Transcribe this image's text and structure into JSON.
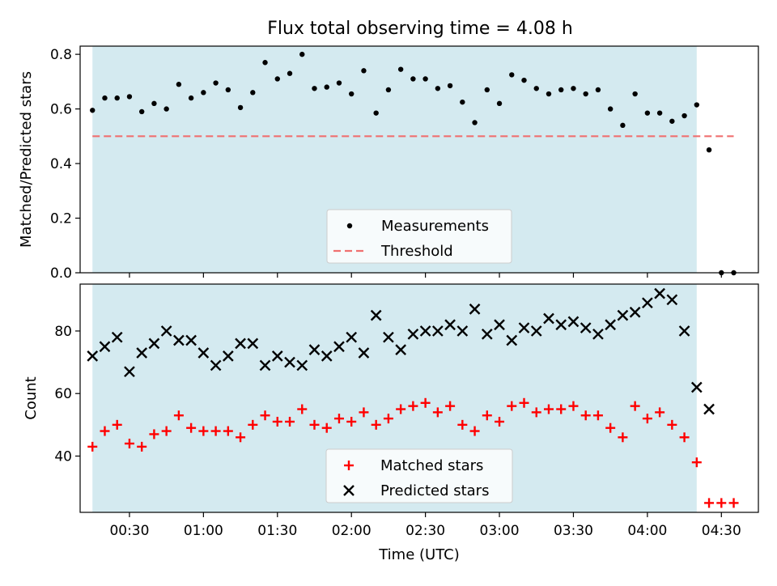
{
  "chart_data": [
    {
      "type": "scatter",
      "title": "Flux total observing time = 4.08 h",
      "ylabel": "Matched/Predicted stars",
      "xlim": [
        "00:10",
        "04:45"
      ],
      "ylim": [
        0,
        0.83
      ],
      "yticks": [
        "0.0",
        "0.2",
        "0.4",
        "0.6",
        "0.8"
      ],
      "shaded_span": [
        "00:15",
        "04:20"
      ],
      "shade_color": "#d4eaf0",
      "threshold": {
        "value": 0.5,
        "from": "00:15",
        "to": "04:35",
        "color": "#f07070"
      },
      "legend": {
        "placement": "bottom-center",
        "entries": [
          "Measurements",
          "Threshold"
        ]
      },
      "series": [
        {
          "name": "Measurements",
          "color": "#000000",
          "marker": "dot",
          "x": [
            "00:15",
            "00:20",
            "00:25",
            "00:30",
            "00:35",
            "00:40",
            "00:45",
            "00:50",
            "00:55",
            "01:00",
            "01:05",
            "01:10",
            "01:15",
            "01:20",
            "01:25",
            "01:30",
            "01:35",
            "01:40",
            "01:45",
            "01:50",
            "01:55",
            "02:00",
            "02:05",
            "02:10",
            "02:15",
            "02:20",
            "02:25",
            "02:30",
            "02:35",
            "02:40",
            "02:45",
            "02:50",
            "02:55",
            "03:00",
            "03:05",
            "03:10",
            "03:15",
            "03:20",
            "03:25",
            "03:30",
            "03:35",
            "03:40",
            "03:45",
            "03:50",
            "03:55",
            "04:00",
            "04:05",
            "04:10",
            "04:15",
            "04:20",
            "04:25",
            "04:30",
            "04:35"
          ],
          "y": [
            0.595,
            0.64,
            0.64,
            0.645,
            0.59,
            0.62,
            0.6,
            0.69,
            0.64,
            0.66,
            0.695,
            0.67,
            0.605,
            0.66,
            0.77,
            0.71,
            0.73,
            0.8,
            0.675,
            0.68,
            0.695,
            0.655,
            0.74,
            0.585,
            0.67,
            0.745,
            0.71,
            0.71,
            0.675,
            0.685,
            0.625,
            0.55,
            0.67,
            0.62,
            0.725,
            0.705,
            0.675,
            0.655,
            0.67,
            0.675,
            0.655,
            0.67,
            0.6,
            0.54,
            0.655,
            0.585,
            0.585,
            0.555,
            0.575,
            0.615,
            0.45,
            0.0,
            0.0
          ]
        }
      ]
    },
    {
      "type": "scatter",
      "ylabel": "Count",
      "xlabel": "Time (UTC)",
      "xlim": [
        "00:10",
        "04:45"
      ],
      "ylim": [
        22,
        95
      ],
      "yticks": [
        "40",
        "60",
        "80"
      ],
      "xticks": [
        "00:30",
        "01:00",
        "01:30",
        "02:00",
        "02:30",
        "03:00",
        "03:30",
        "04:00",
        "04:30"
      ],
      "shaded_span": [
        "00:15",
        "04:20"
      ],
      "shade_color": "#d4eaf0",
      "legend": {
        "placement": "bottom-center",
        "entries": [
          "Matched stars",
          "Predicted stars"
        ]
      },
      "series": [
        {
          "name": "Matched stars",
          "color": "#ff0000",
          "marker": "plus",
          "x": [
            "00:15",
            "00:20",
            "00:25",
            "00:30",
            "00:35",
            "00:40",
            "00:45",
            "00:50",
            "00:55",
            "01:00",
            "01:05",
            "01:10",
            "01:15",
            "01:20",
            "01:25",
            "01:30",
            "01:35",
            "01:40",
            "01:45",
            "01:50",
            "01:55",
            "02:00",
            "02:05",
            "02:10",
            "02:15",
            "02:20",
            "02:25",
            "02:30",
            "02:35",
            "02:40",
            "02:45",
            "02:50",
            "02:55",
            "03:00",
            "03:05",
            "03:10",
            "03:15",
            "03:20",
            "03:25",
            "03:30",
            "03:35",
            "03:40",
            "03:45",
            "03:50",
            "03:55",
            "04:00",
            "04:05",
            "04:10",
            "04:15",
            "04:20",
            "04:25",
            "04:30",
            "04:35"
          ],
          "y": [
            43,
            48,
            50,
            44,
            43,
            47,
            48,
            53,
            49,
            48,
            48,
            48,
            46,
            50,
            53,
            51,
            51,
            55,
            50,
            49,
            52,
            51,
            54,
            50,
            52,
            55,
            56,
            57,
            54,
            56,
            50,
            48,
            53,
            51,
            56,
            57,
            54,
            55,
            55,
            56,
            53,
            53,
            49,
            46,
            56,
            52,
            54,
            50,
            46,
            38,
            25,
            25,
            25
          ]
        },
        {
          "name": "Predicted stars",
          "color": "#000000",
          "marker": "x",
          "x": [
            "00:15",
            "00:20",
            "00:25",
            "00:30",
            "00:35",
            "00:40",
            "00:45",
            "00:50",
            "00:55",
            "01:00",
            "01:05",
            "01:10",
            "01:15",
            "01:20",
            "01:25",
            "01:30",
            "01:35",
            "01:40",
            "01:45",
            "01:50",
            "01:55",
            "02:00",
            "02:05",
            "02:10",
            "02:15",
            "02:20",
            "02:25",
            "02:30",
            "02:35",
            "02:40",
            "02:45",
            "02:50",
            "02:55",
            "03:00",
            "03:05",
            "03:10",
            "03:15",
            "03:20",
            "03:25",
            "03:30",
            "03:35",
            "03:40",
            "03:45",
            "03:50",
            "03:55",
            "04:00",
            "04:05",
            "04:10",
            "04:15",
            "04:20",
            "04:25"
          ],
          "y": [
            72,
            75,
            78,
            67,
            73,
            76,
            80,
            77,
            77,
            73,
            69,
            72,
            76,
            76,
            69,
            72,
            70,
            69,
            74,
            72,
            75,
            78,
            73,
            85,
            78,
            74,
            79,
            80,
            80,
            82,
            80,
            87,
            79,
            82,
            77,
            81,
            80,
            84,
            82,
            83,
            81,
            79,
            82,
            85,
            86,
            89,
            92,
            90,
            80,
            62,
            55
          ]
        }
      ]
    }
  ]
}
